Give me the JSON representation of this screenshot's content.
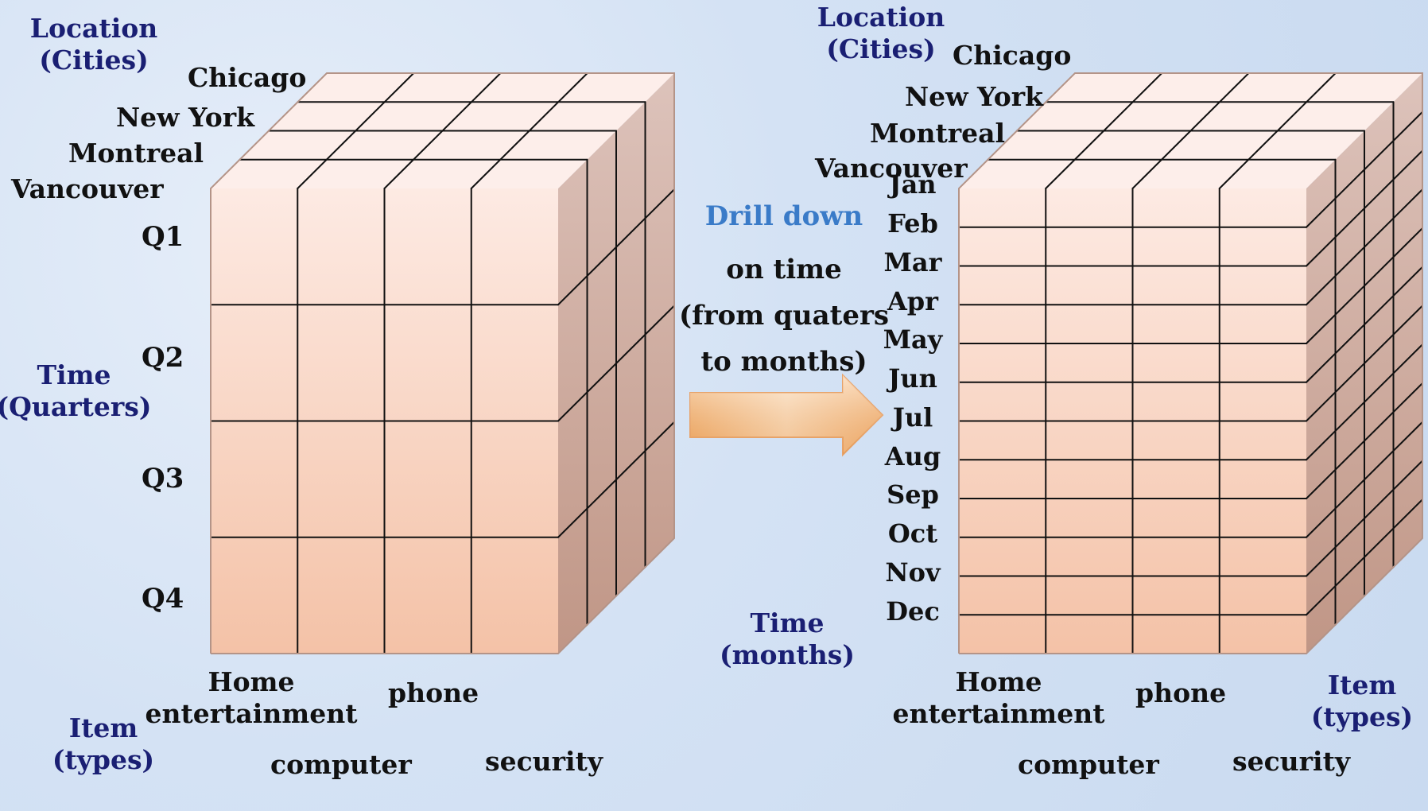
{
  "left_cube": {
    "location_label": "Location\n(Cities)",
    "cities": [
      "Chicago",
      "New York",
      "Montreal",
      "Vancouver"
    ],
    "time_label": "Time\n(Quarters)",
    "quarters": [
      "Q1",
      "Q2",
      "Q3",
      "Q4"
    ],
    "item_label": "Item\n(types)",
    "items": [
      "Home\nentertainment",
      "computer",
      "phone",
      "security"
    ]
  },
  "arrow_text": {
    "title": "Drill down",
    "body": "on time\n(from quaters\nto months)"
  },
  "right_cube": {
    "location_label": "Location\n(Cities)",
    "cities": [
      "Chicago",
      "New York",
      "Montreal",
      "Vancouver"
    ],
    "months": [
      "Jan",
      "Feb",
      "Mar",
      "Apr",
      "May",
      "Jun",
      "Jul",
      "Aug",
      "Sep",
      "Oct",
      "Nov",
      "Dec"
    ],
    "time_label": "Time\n(months)",
    "item_label": "Item\n(types)",
    "items": [
      "Home\nentertainment",
      "computer",
      "phone",
      "security"
    ]
  },
  "colors": {
    "front_top": "#fdeae3",
    "front_bottom": "#f4c2a7",
    "side_top": "#ddc3bb",
    "side_bottom": "#c09686",
    "top_face": "#fdeeea",
    "grid_line": "#111111",
    "label_navy": "#1a1f73",
    "drill_blue": "#3a7bc8",
    "arrow_light": "#fbe3c8",
    "arrow_dark": "#f0a55a"
  }
}
